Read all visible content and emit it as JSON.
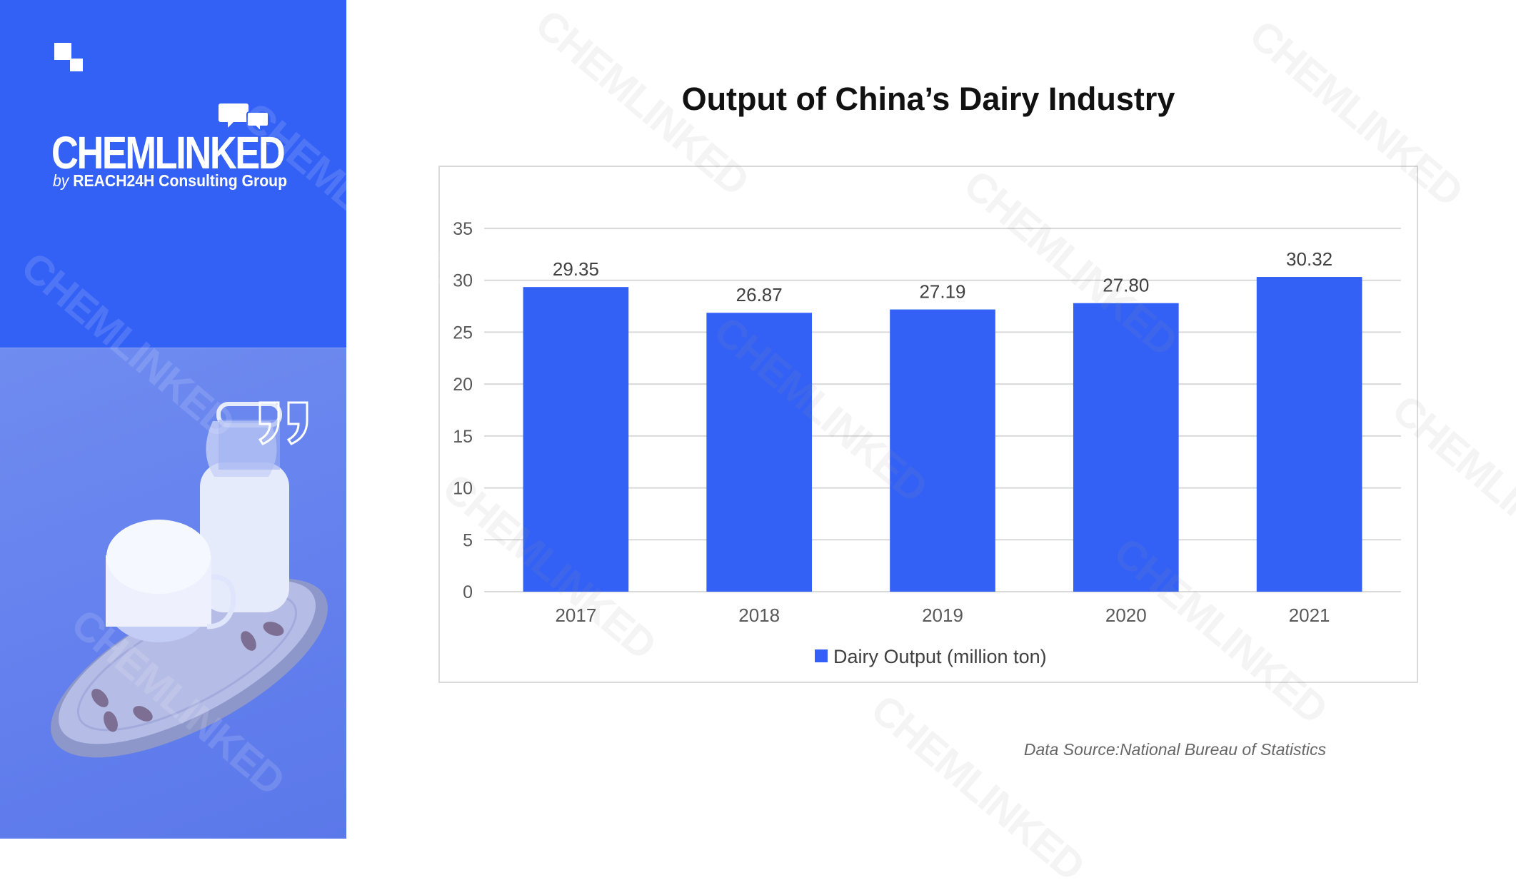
{
  "brand": {
    "name": "CHEMLINKED",
    "sub_by": "by",
    "sub_org": "REACH24H Consulting Group",
    "accent_color": "#3461f5"
  },
  "photo": {
    "description_icons": [
      "milk-bottle",
      "milk-glass",
      "wood-board",
      "almonds",
      "quote-mark"
    ]
  },
  "chart_data": {
    "type": "bar",
    "title": "Output of China’s Dairy Industry",
    "categories": [
      "2017",
      "2018",
      "2019",
      "2020",
      "2021"
    ],
    "series": [
      {
        "name": "Dairy Output (million ton)",
        "values": [
          29.35,
          26.87,
          27.19,
          27.8,
          30.32
        ],
        "color": "#3461f5"
      }
    ],
    "data_labels": [
      "29.35",
      "26.87",
      "27.19",
      "27.80",
      "30.32"
    ],
    "y_ticks": [
      0,
      5,
      10,
      15,
      20,
      25,
      30,
      35
    ],
    "ylim": [
      0,
      35
    ],
    "grid": true,
    "legend_position": "bottom"
  },
  "source_note": "Data Source:National Bureau of Statistics"
}
